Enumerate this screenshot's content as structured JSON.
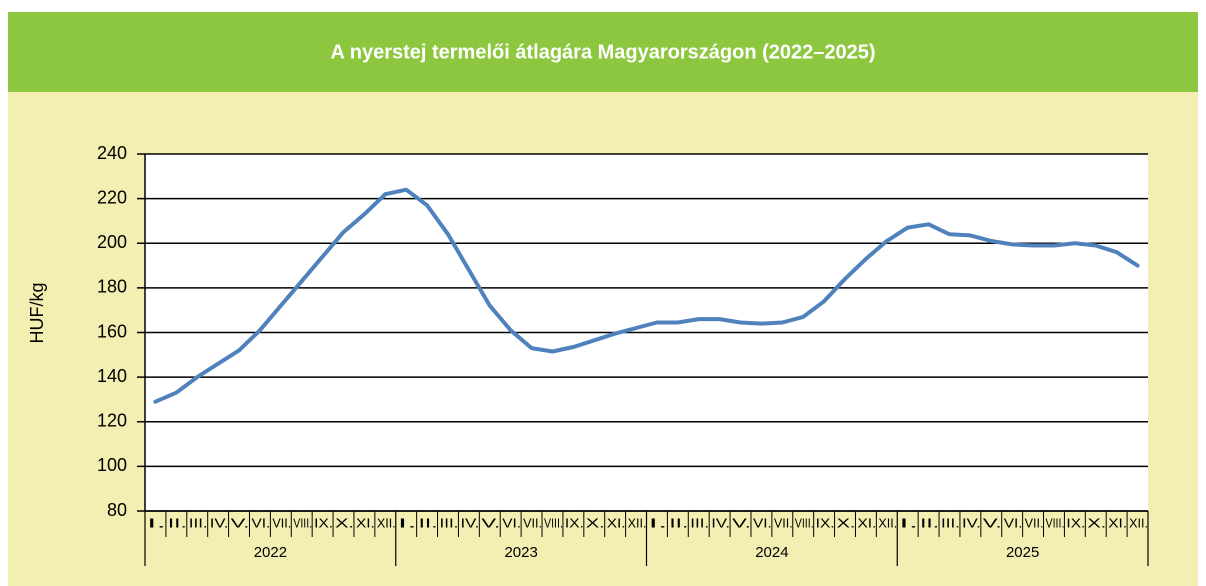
{
  "chart_data": {
    "type": "line",
    "title": "A nyerstej termelői átlagára Magyarországon (2022–2025)",
    "y_label": "HUF/kg",
    "categories": [
      "I.",
      "II.",
      "III.",
      "IV.",
      "V.",
      "VI.",
      "VII.",
      "VIII.",
      "IX.",
      "X.",
      "XI.",
      "XII.",
      "I.",
      "II.",
      "III.",
      "IV.",
      "V.",
      "VI.",
      "VII.",
      "VIII.",
      "IX.",
      "X.",
      "XI.",
      "XII.",
      "I.",
      "II.",
      "III.",
      "IV.",
      "V.",
      "VI.",
      "VII.",
      "VIII.",
      "IX.",
      "X.",
      "XI.",
      "XII.",
      "I.",
      "II.",
      "III.",
      "IV.",
      "V.",
      "VI.",
      "VII.",
      "VIII.",
      "IX.",
      "X.",
      "XI.",
      "XII."
    ],
    "groups": [
      "2022",
      "2023",
      "2024",
      "2025"
    ],
    "color": "#4f81bd",
    "values": [
      129,
      133,
      140,
      146,
      152,
      161,
      172,
      183,
      194,
      205,
      213,
      222,
      224,
      217,
      204,
      188,
      172,
      161,
      153,
      151.5,
      153.5,
      156.5,
      159.5,
      162,
      164.5,
      164.5,
      166,
      166,
      164.5,
      164,
      164.5,
      167,
      174,
      184,
      193,
      201,
      207,
      208.5,
      204,
      203.5,
      201,
      199.5,
      199,
      199,
      200,
      199,
      196,
      190
    ],
    "ylim": [
      80,
      240
    ],
    "yticks": [
      80,
      100,
      120,
      140,
      160,
      180,
      200,
      220,
      240
    ],
    "grid": true
  }
}
